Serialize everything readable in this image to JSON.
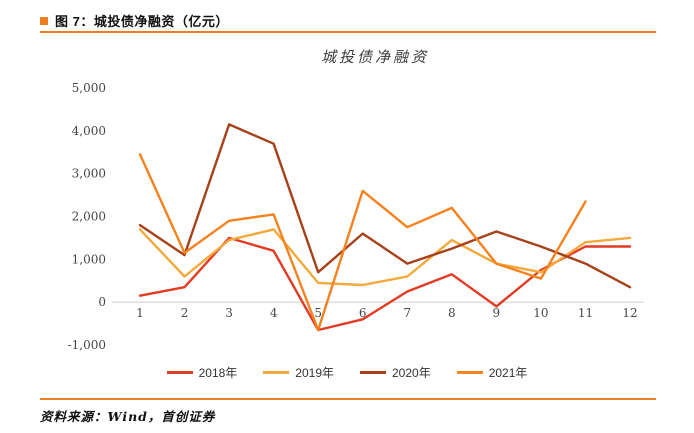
{
  "header": {
    "title": "图 7：城投债净融资（亿元）"
  },
  "footer": {
    "source": "资料来源：Wind，首创证券"
  },
  "colors": {
    "accent": "#ee7c21",
    "axis_line": "#cfcfcf"
  },
  "chart_data": {
    "type": "line",
    "title": "城投债净融资",
    "x_labels": [
      "1",
      "2",
      "3",
      "4",
      "5",
      "6",
      "7",
      "8",
      "9",
      "10",
      "11",
      "12"
    ],
    "xlabel": "",
    "ylabel": "",
    "ylim": [
      -1000,
      5000
    ],
    "grid": false,
    "legend_position": "bottom",
    "y_ticks": [
      {
        "label": "5,000",
        "value": 5000
      },
      {
        "label": "4,000",
        "value": 4000
      },
      {
        "label": "3,000",
        "value": 3000
      },
      {
        "label": "2,000",
        "value": 2000
      },
      {
        "label": "1,000",
        "value": 1000
      },
      {
        "label": "0",
        "value": 0
      },
      {
        "label": "-1,000",
        "value": -1000
      }
    ],
    "series": [
      {
        "name": "2018年",
        "color": "#e23b24",
        "values": [
          150,
          350,
          1500,
          1200,
          -650,
          -400,
          250,
          650,
          -100,
          750,
          1300,
          1300
        ]
      },
      {
        "name": "2019年",
        "color": "#f3a93c",
        "values": [
          1700,
          600,
          1450,
          1700,
          450,
          400,
          600,
          1450,
          900,
          700,
          1400,
          1500
        ]
      },
      {
        "name": "2020年",
        "color": "#a64119",
        "values": [
          1800,
          1100,
          4150,
          3700,
          700,
          1600,
          900,
          1250,
          1650,
          1300,
          900,
          350
        ]
      },
      {
        "name": "2021年",
        "color": "#f5821f",
        "values": [
          3450,
          1150,
          1900,
          2050,
          -650,
          2600,
          1750,
          2200,
          900,
          550,
          2350,
          null
        ]
      }
    ]
  }
}
